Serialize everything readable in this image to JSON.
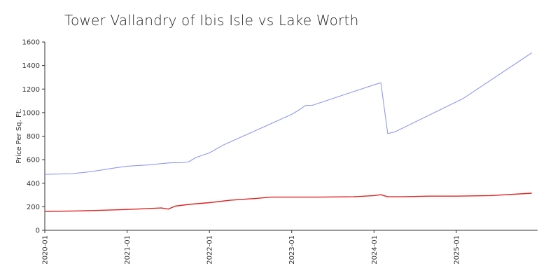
{
  "chart_data": {
    "type": "line",
    "title": "Tower Vallandry of Ibis Isle vs Lake Worth",
    "xlabel": "",
    "ylabel": "Price Per Sq. Ft.",
    "xlim": [
      "2020-01",
      "2025-12"
    ],
    "ylim": [
      0,
      1600
    ],
    "yticks": [
      0,
      200,
      400,
      600,
      800,
      1000,
      1200,
      1400,
      1600
    ],
    "xticks": [
      "2020-01",
      "2021-01",
      "2022-01",
      "2023-01",
      "2024-01",
      "2025-01"
    ],
    "grid": false,
    "legend": "none",
    "series": [
      {
        "color": "#8f98f2",
        "points": [
          [
            "2020-01",
            475
          ],
          [
            "2020-03",
            478
          ],
          [
            "2020-05",
            482
          ],
          [
            "2020-07",
            493
          ],
          [
            "2020-09",
            510
          ],
          [
            "2020-11",
            528
          ],
          [
            "2021-01",
            545
          ],
          [
            "2021-04",
            555
          ],
          [
            "2021-07",
            572
          ],
          [
            "2021-08",
            575
          ],
          [
            "2021-09",
            574
          ],
          [
            "2021-10",
            583
          ],
          [
            "2021-11",
            618
          ],
          [
            "2022-01",
            658
          ],
          [
            "2022-03",
            724
          ],
          [
            "2023-01",
            985
          ],
          [
            "2023-02",
            1020
          ],
          [
            "2023-03",
            1060
          ],
          [
            "2023-04",
            1062
          ],
          [
            "2024-01",
            1236
          ],
          [
            "2024-02",
            1253
          ],
          [
            "2024-03",
            822
          ],
          [
            "2024-04",
            835
          ],
          [
            "2025-02",
            1120
          ],
          [
            "2025-12",
            1508
          ]
        ]
      },
      {
        "color": "#e02020",
        "points": [
          [
            "2020-01",
            160
          ],
          [
            "2020-06",
            165
          ],
          [
            "2020-12",
            175
          ],
          [
            "2021-03",
            182
          ],
          [
            "2021-06",
            190
          ],
          [
            "2021-07",
            180
          ],
          [
            "2021-08",
            205
          ],
          [
            "2021-10",
            220
          ],
          [
            "2022-01",
            235
          ],
          [
            "2022-04",
            255
          ],
          [
            "2022-08",
            272
          ],
          [
            "2022-10",
            282
          ],
          [
            "2023-01",
            282
          ],
          [
            "2023-05",
            282
          ],
          [
            "2023-10",
            285
          ],
          [
            "2024-01",
            295
          ],
          [
            "2024-02",
            302
          ],
          [
            "2024-03",
            285
          ],
          [
            "2024-05",
            285
          ],
          [
            "2024-09",
            290
          ],
          [
            "2025-01",
            290
          ],
          [
            "2025-06",
            295
          ],
          [
            "2025-12",
            315
          ]
        ]
      }
    ]
  }
}
